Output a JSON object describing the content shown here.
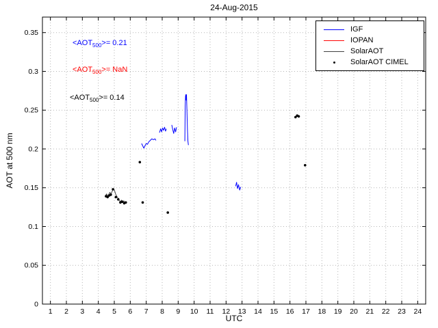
{
  "chart_data": {
    "type": "line",
    "title": "24-Aug-2015",
    "xlabel": "UTC",
    "ylabel": "AOT at 500 nm",
    "xlim": [
      0.5,
      24.5
    ],
    "ylim": [
      0,
      0.37
    ],
    "grid": true,
    "x_ticks": [
      1,
      2,
      3,
      4,
      5,
      6,
      7,
      8,
      9,
      10,
      11,
      12,
      13,
      14,
      15,
      16,
      17,
      18,
      19,
      20,
      21,
      22,
      23,
      24
    ],
    "x_tick_labels": [
      "1",
      "2",
      "3",
      "4",
      "5",
      "6",
      "7",
      "8",
      "9",
      "10",
      "11",
      "12",
      "13",
      "14",
      "15",
      "16",
      "17",
      "18",
      "19",
      "20",
      "21",
      "22",
      "23",
      "24"
    ],
    "y_ticks": [
      0,
      0.05,
      0.1,
      0.15,
      0.2,
      0.25,
      0.3,
      0.35
    ],
    "y_tick_labels": [
      "0",
      "0.05",
      "0.1",
      "0.15",
      "0.2",
      "0.25",
      "0.3",
      "0.35"
    ],
    "legend": {
      "position": "top-right",
      "entries": [
        {
          "label": "IGF",
          "color": "#0000ff",
          "marker": "line"
        },
        {
          "label": "IOPAN",
          "color": "#ff0000",
          "marker": "line"
        },
        {
          "label": "SolarAOT",
          "color": "#404040",
          "marker": "line"
        },
        {
          "label": "SolarAOT CIMEL",
          "color": "#000000",
          "marker": "dot"
        }
      ]
    },
    "annotations": [
      {
        "series": "IGF",
        "prefix": "<AOT",
        "sub": "500",
        "suffix": ">= 0.21",
        "color": "#0000ff"
      },
      {
        "series": "IOPAN",
        "prefix": "<AOT",
        "sub": "500",
        "suffix": ">= NaN",
        "color": "#ff0000"
      },
      {
        "series": "SolarAOT",
        "prefix": "<AOT",
        "sub": "500",
        "suffix": ">= 0.14",
        "color": "#000000"
      }
    ],
    "series": [
      {
        "name": "IGF",
        "type": "line",
        "color": "#0000ff",
        "segments": [
          [
            [
              6.71,
              0.207
            ],
            [
              6.78,
              0.204
            ],
            [
              6.85,
              0.201
            ],
            [
              6.92,
              0.204
            ],
            [
              7.0,
              0.207
            ],
            [
              7.08,
              0.206
            ],
            [
              7.15,
              0.209
            ],
            [
              7.25,
              0.211
            ],
            [
              7.35,
              0.213
            ],
            [
              7.45,
              0.212
            ],
            [
              7.55,
              0.213
            ],
            [
              7.61,
              0.211
            ]
          ],
          [
            [
              7.83,
              0.221
            ],
            [
              7.9,
              0.226
            ],
            [
              7.96,
              0.222
            ],
            [
              8.02,
              0.227
            ],
            [
              8.08,
              0.224
            ],
            [
              8.15,
              0.228
            ],
            [
              8.21,
              0.223
            ],
            [
              8.26,
              0.226
            ]
          ],
          [
            [
              8.6,
              0.231
            ],
            [
              8.66,
              0.225
            ],
            [
              8.72,
              0.22
            ],
            [
              8.78,
              0.227
            ],
            [
              8.84,
              0.222
            ],
            [
              8.9,
              0.228
            ]
          ],
          [
            [
              9.42,
              0.21
            ],
            [
              9.44,
              0.255
            ],
            [
              9.46,
              0.268
            ],
            [
              9.48,
              0.27
            ],
            [
              9.5,
              0.263
            ],
            [
              9.52,
              0.27
            ],
            [
              9.55,
              0.248
            ],
            [
              9.58,
              0.225
            ],
            [
              9.61,
              0.21
            ],
            [
              9.64,
              0.205
            ]
          ],
          [
            [
              12.6,
              0.152
            ],
            [
              12.66,
              0.157
            ],
            [
              12.72,
              0.149
            ],
            [
              12.78,
              0.154
            ],
            [
              12.85,
              0.147
            ],
            [
              12.92,
              0.151
            ]
          ]
        ]
      },
      {
        "name": "IOPAN",
        "type": "line",
        "color": "#ff0000",
        "segments": []
      },
      {
        "name": "SolarAOT",
        "type": "line",
        "color": "#404040",
        "segments": [
          [
            [
              4.45,
              0.14
            ],
            [
              4.52,
              0.142
            ],
            [
              4.58,
              0.139
            ],
            [
              4.65,
              0.141
            ],
            [
              4.72,
              0.144
            ],
            [
              4.8,
              0.142
            ],
            [
              4.88,
              0.146
            ],
            [
              4.95,
              0.149
            ],
            [
              5.02,
              0.146
            ],
            [
              5.08,
              0.142
            ],
            [
              5.15,
              0.139
            ],
            [
              5.22,
              0.137
            ],
            [
              5.3,
              0.134
            ],
            [
              5.38,
              0.132
            ],
            [
              5.45,
              0.134
            ],
            [
              5.52,
              0.131
            ],
            [
              5.6,
              0.133
            ],
            [
              5.68,
              0.13
            ],
            [
              5.75,
              0.131
            ]
          ]
        ]
      },
      {
        "name": "SolarAOT CIMEL",
        "type": "scatter",
        "color": "#000000",
        "points": [
          [
            4.48,
            0.139
          ],
          [
            4.58,
            0.138
          ],
          [
            4.68,
            0.14
          ],
          [
            4.78,
            0.141
          ],
          [
            4.92,
            0.148
          ],
          [
            5.1,
            0.138
          ],
          [
            5.25,
            0.135
          ],
          [
            5.38,
            0.131
          ],
          [
            5.5,
            0.132
          ],
          [
            5.62,
            0.13
          ],
          [
            5.72,
            0.131
          ],
          [
            6.6,
            0.183
          ],
          [
            6.78,
            0.131
          ],
          [
            8.35,
            0.118
          ],
          [
            16.35,
            0.241
          ],
          [
            16.45,
            0.243
          ],
          [
            16.55,
            0.242
          ],
          [
            16.95,
            0.179
          ]
        ]
      }
    ]
  }
}
